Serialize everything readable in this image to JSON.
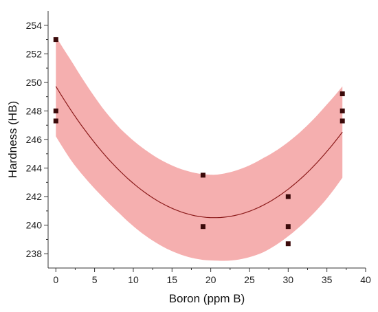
{
  "chart_data": {
    "type": "scatter",
    "xlabel": "Boron (ppm B)",
    "ylabel": "Hardness (HB)",
    "xlim": [
      -1,
      40
    ],
    "ylim": [
      237,
      255
    ],
    "xticks": [
      0,
      5,
      10,
      15,
      20,
      25,
      30,
      35,
      40
    ],
    "yticks": [
      238,
      240,
      242,
      244,
      246,
      248,
      250,
      252,
      254
    ],
    "grid": false,
    "legend": "none",
    "points": {
      "x": [
        0,
        0,
        0,
        19,
        19,
        30,
        30,
        30,
        37,
        37,
        37
      ],
      "y": [
        253.0,
        248.0,
        247.3,
        243.5,
        239.9,
        242.0,
        239.9,
        238.7,
        249.2,
        248.0,
        247.3
      ],
      "color": "#3b0a0a"
    },
    "fit": {
      "type": "quadratic",
      "x_range": [
        0,
        37
      ],
      "coefficients": [
        249.72,
        -0.8985,
        0.02195
      ],
      "confidence_half_width": [
        3.5,
        3.5,
        3.3,
        3.1,
        3.0,
        3.0,
        3.0,
        3.0,
        3.0,
        3.0,
        3.0,
        3.1,
        3.2,
        3.3,
        3.3,
        3.3,
        3.3,
        3.3,
        3.2
      ],
      "line_color": "#8b1a1a",
      "band_color": "#f4a6a6"
    }
  }
}
